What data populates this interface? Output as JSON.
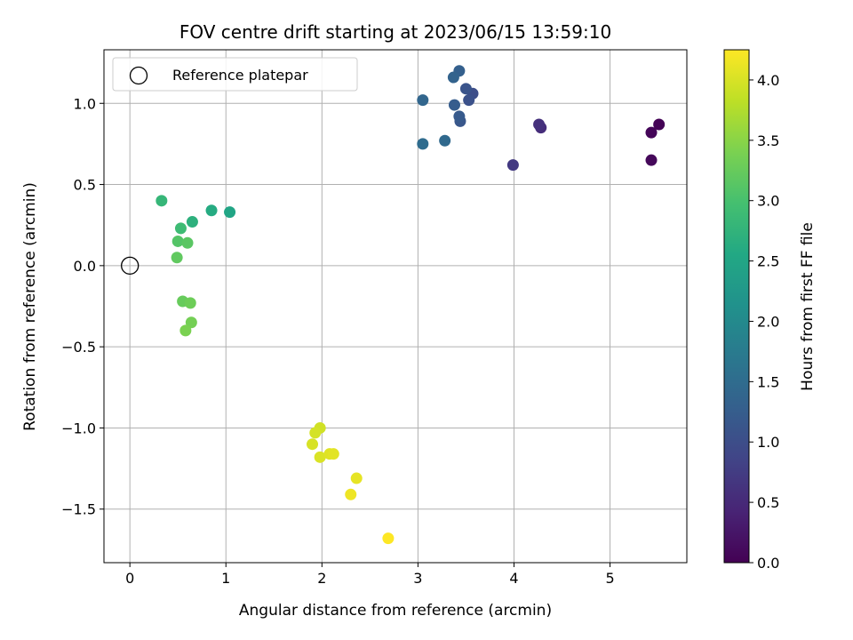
{
  "chart_data": {
    "type": "scatter",
    "title": "FOV centre drift starting at 2023/06/15 13:59:10",
    "xlabel": "Angular distance from reference (arcmin)",
    "ylabel": "Rotation from reference (arcmin)",
    "xlim": [
      -0.27,
      5.8
    ],
    "ylim": [
      -1.83,
      1.33
    ],
    "xticks": [
      0,
      1,
      2,
      3,
      4,
      5
    ],
    "yticks": [
      -1.5,
      -1.0,
      -0.5,
      0.0,
      0.5,
      1.0
    ],
    "xtick_labels": [
      "0",
      "1",
      "2",
      "3",
      "4",
      "5"
    ],
    "ytick_labels": [
      "−1.5",
      "−1.0",
      "−0.5",
      "0.0",
      "0.5",
      "1.0"
    ],
    "grid": true,
    "colormap": "viridis",
    "colorbar": {
      "label": "Hours from first FF file",
      "range": [
        0,
        4.25
      ],
      "ticks": [
        0.0,
        0.5,
        1.0,
        1.5,
        2.0,
        2.5,
        3.0,
        3.5,
        4.0
      ],
      "tick_labels": [
        "0.0",
        "0.5",
        "1.0",
        "1.5",
        "2.0",
        "2.5",
        "3.0",
        "3.5",
        "4.0"
      ]
    },
    "legend": {
      "position": "top-left",
      "entries": [
        {
          "label": "Reference platepar",
          "marker": "open-circle"
        }
      ]
    },
    "reference_point": {
      "x": 0,
      "y": 0
    },
    "points": [
      {
        "x": 5.51,
        "y": 0.87,
        "c": 0.02
      },
      {
        "x": 5.43,
        "y": 0.82,
        "c": 0.05
      },
      {
        "x": 5.43,
        "y": 0.65,
        "c": 0.08
      },
      {
        "x": 4.28,
        "y": 0.85,
        "c": 0.55
      },
      {
        "x": 4.26,
        "y": 0.87,
        "c": 0.6
      },
      {
        "x": 3.99,
        "y": 0.62,
        "c": 0.7
      },
      {
        "x": 3.57,
        "y": 1.06,
        "c": 1.0
      },
      {
        "x": 3.53,
        "y": 1.02,
        "c": 1.05
      },
      {
        "x": 3.5,
        "y": 1.09,
        "c": 1.1
      },
      {
        "x": 3.44,
        "y": 0.89,
        "c": 1.15
      },
      {
        "x": 3.43,
        "y": 0.92,
        "c": 1.2
      },
      {
        "x": 3.38,
        "y": 0.99,
        "c": 1.25
      },
      {
        "x": 3.43,
        "y": 1.2,
        "c": 1.3
      },
      {
        "x": 3.37,
        "y": 1.16,
        "c": 1.35
      },
      {
        "x": 3.05,
        "y": 1.02,
        "c": 1.4
      },
      {
        "x": 3.28,
        "y": 0.77,
        "c": 1.45
      },
      {
        "x": 3.05,
        "y": 0.75,
        "c": 1.5
      },
      {
        "x": 1.04,
        "y": 0.33,
        "c": 2.5
      },
      {
        "x": 0.85,
        "y": 0.34,
        "c": 2.6
      },
      {
        "x": 0.65,
        "y": 0.27,
        "c": 2.7
      },
      {
        "x": 0.33,
        "y": 0.4,
        "c": 2.8
      },
      {
        "x": 0.53,
        "y": 0.23,
        "c": 2.9
      },
      {
        "x": 0.5,
        "y": 0.15,
        "c": 3.1
      },
      {
        "x": 0.6,
        "y": 0.14,
        "c": 3.15
      },
      {
        "x": 0.49,
        "y": 0.05,
        "c": 3.2
      },
      {
        "x": 0.55,
        "y": -0.22,
        "c": 3.25
      },
      {
        "x": 0.63,
        "y": -0.23,
        "c": 3.3
      },
      {
        "x": 0.64,
        "y": -0.35,
        "c": 3.35
      },
      {
        "x": 0.58,
        "y": -0.4,
        "c": 3.4
      },
      {
        "x": 1.98,
        "y": -1.0,
        "c": 3.95
      },
      {
        "x": 1.93,
        "y": -1.03,
        "c": 3.98
      },
      {
        "x": 1.9,
        "y": -1.1,
        "c": 4.0
      },
      {
        "x": 1.98,
        "y": -1.18,
        "c": 4.02
      },
      {
        "x": 2.08,
        "y": -1.16,
        "c": 4.05
      },
      {
        "x": 2.12,
        "y": -1.16,
        "c": 4.07
      },
      {
        "x": 2.36,
        "y": -1.31,
        "c": 4.1
      },
      {
        "x": 2.3,
        "y": -1.41,
        "c": 4.15
      },
      {
        "x": 2.69,
        "y": -1.68,
        "c": 4.25
      }
    ]
  }
}
